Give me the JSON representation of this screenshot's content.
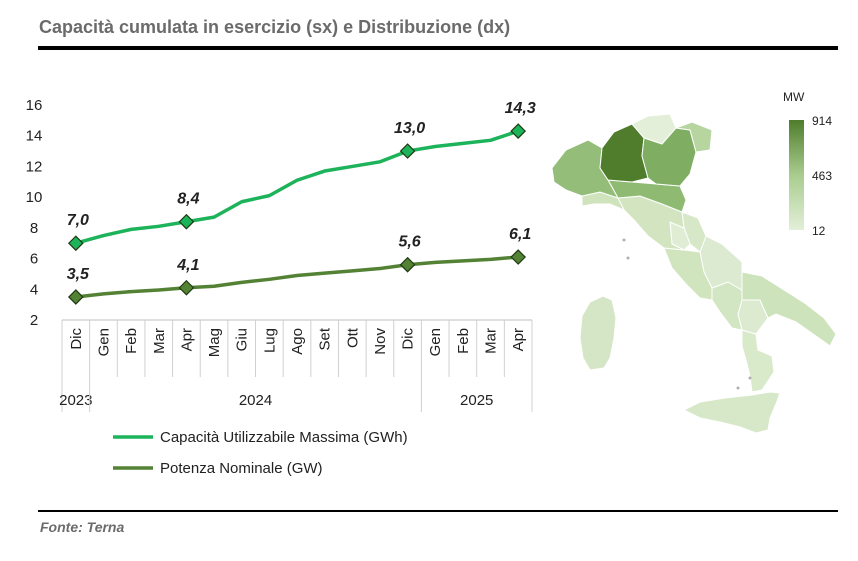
{
  "header": {
    "title": "Capacità cumulata in esercizio (sx) e Distribuzione (dx)"
  },
  "footer": {
    "source": "Fonte: Terna"
  },
  "chart_data": [
    {
      "type": "line",
      "title": "",
      "ylim": [
        2,
        16
      ],
      "yticks": [
        "2",
        "4",
        "6",
        "8",
        "10",
        "12",
        "14",
        "16"
      ],
      "categories": [
        "Dic",
        "Gen",
        "Feb",
        "Mar",
        "Apr",
        "Mag",
        "Giu",
        "Lug",
        "Ago",
        "Set",
        "Ott",
        "Nov",
        "Dic",
        "Gen",
        "Feb",
        "Mar",
        "Apr"
      ],
      "year_groups": [
        {
          "label": "2023",
          "count": 1
        },
        {
          "label": "2024",
          "count": 12
        },
        {
          "label": "2025",
          "count": 4
        }
      ],
      "series": [
        {
          "name": "Capacità Utilizzabile Massima (GWh)",
          "color": "#1db35a",
          "values": [
            7.0,
            7.5,
            7.9,
            8.1,
            8.4,
            8.7,
            9.7,
            10.1,
            11.1,
            11.7,
            12.0,
            12.3,
            13.0,
            13.3,
            13.5,
            13.7,
            14.3
          ],
          "data_labels": [
            {
              "index": 0,
              "text": "7,0"
            },
            {
              "index": 4,
              "text": "8,4"
            },
            {
              "index": 12,
              "text": "13,0"
            },
            {
              "index": 16,
              "text": "14,3"
            }
          ]
        },
        {
          "name": "Potenza Nominale (GW)",
          "color": "#548235",
          "values": [
            3.5,
            3.7,
            3.85,
            3.95,
            4.1,
            4.2,
            4.45,
            4.65,
            4.9,
            5.05,
            5.2,
            5.35,
            5.6,
            5.75,
            5.85,
            5.95,
            6.1
          ],
          "data_labels": [
            {
              "index": 0,
              "text": "3,5"
            },
            {
              "index": 4,
              "text": "4,1"
            },
            {
              "index": 12,
              "text": "5,6"
            },
            {
              "index": 16,
              "text": "6,1"
            }
          ]
        }
      ],
      "legend": "bottom"
    },
    {
      "type": "heatmap",
      "title": "",
      "scale_title": "MW",
      "scale_labels": [
        "914",
        "463",
        "12"
      ],
      "scale_colors": [
        "#4f7d2c",
        "#a9cc8e",
        "#e3efd8"
      ]
    }
  ]
}
